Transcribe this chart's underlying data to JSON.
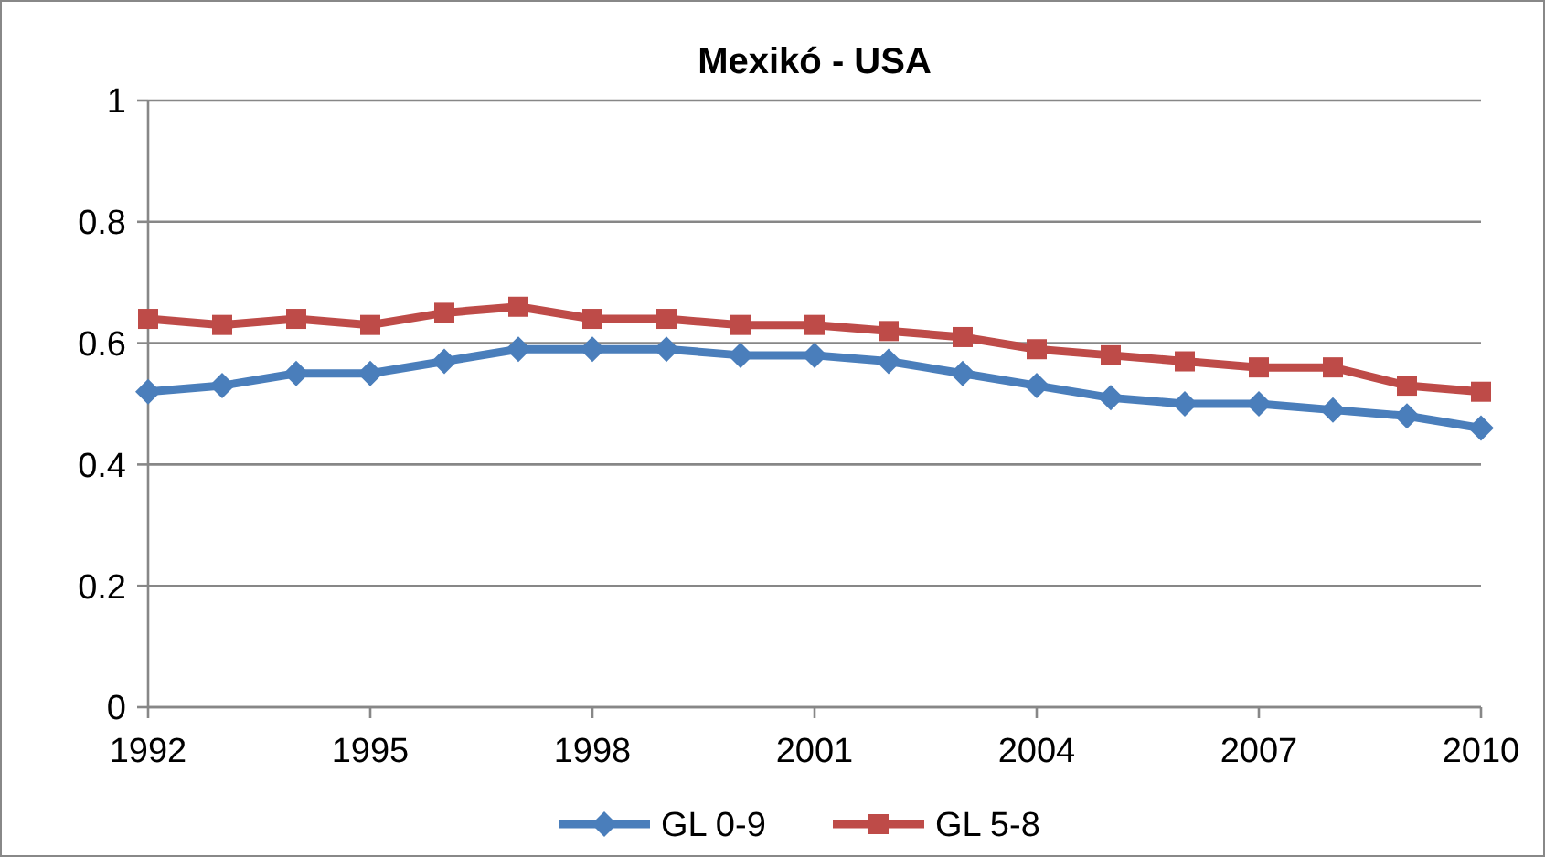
{
  "chart_data": {
    "type": "line",
    "title": "Mexikó - USA",
    "x": [
      1992,
      1993,
      1994,
      1995,
      1996,
      1997,
      1998,
      1999,
      2000,
      2001,
      2002,
      2003,
      2004,
      2005,
      2006,
      2007,
      2008,
      2009,
      2010
    ],
    "series": [
      {
        "name": "GL 0-9",
        "color": "#4a7ebb",
        "marker": "diamond",
        "values": [
          0.52,
          0.53,
          0.55,
          0.55,
          0.57,
          0.59,
          0.59,
          0.59,
          0.58,
          0.58,
          0.57,
          0.55,
          0.53,
          0.51,
          0.5,
          0.5,
          0.49,
          0.48,
          0.46
        ]
      },
      {
        "name": "GL 5-8",
        "color": "#be4b48",
        "marker": "square",
        "values": [
          0.64,
          0.63,
          0.64,
          0.63,
          0.65,
          0.66,
          0.64,
          0.64,
          0.63,
          0.63,
          0.62,
          0.61,
          0.59,
          0.58,
          0.57,
          0.56,
          0.56,
          0.53,
          0.52
        ]
      }
    ],
    "xlim": [
      1992,
      2010
    ],
    "xticks": [
      1992,
      1995,
      1998,
      2001,
      2004,
      2007,
      2010
    ],
    "ylim": [
      0,
      1
    ],
    "yticks": [
      0,
      0.2,
      0.4,
      0.6,
      0.8,
      1
    ],
    "grid": "y",
    "legend": "bottom"
  }
}
